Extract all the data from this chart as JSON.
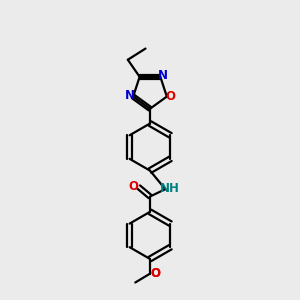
{
  "background_color": "#ebebeb",
  "bond_color": "#000000",
  "atom_colors": {
    "N": "#0000cc",
    "O": "#dd0000",
    "NH": "#008080",
    "C": "#000000"
  },
  "line_width": 1.6,
  "font_size_atoms": 8.5,
  "figsize": [
    3.0,
    3.0
  ],
  "dpi": 100
}
